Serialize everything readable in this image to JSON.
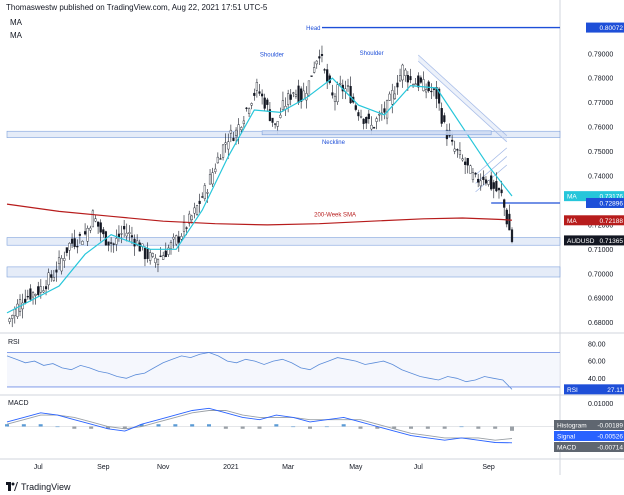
{
  "header": {
    "publisher_line": "Thomaswestw published on TradingView.com, Aug 22, 2021 17:51 UTC-5",
    "indicator_1": "MA",
    "indicator_2": "MA"
  },
  "footer": {
    "brand": "TradingView"
  },
  "colors": {
    "candle": "#131722",
    "ma_fast": "#26c6da",
    "sma_200w": "#b71c1c",
    "levels": "#1e4fd8",
    "zone_fill": "#cfdcf2",
    "rsi_line": "#5b8cd9",
    "macd_line": "#2962ff",
    "signal_line": "#9aa0a6",
    "hist_pos": "#5b9bd5",
    "hist_neg": "#9aa0a6"
  },
  "chart_data": [
    {
      "type": "candlestick",
      "pair": "AUDUSD",
      "timeframe": "daily",
      "x_ticks": [
        "Jul",
        "Sep",
        "Nov",
        "2021",
        "Mar",
        "May",
        "Jul",
        "Sep"
      ],
      "y_ticks": [
        "0.80000",
        "0.79000",
        "0.78000",
        "0.77000",
        "0.76000",
        "0.75000",
        "0.74000",
        "0.73000",
        "0.72000",
        "0.71000",
        "0.70000",
        "0.69000",
        "0.68000"
      ],
      "ylim": [
        0.677,
        0.803
      ],
      "close_path": [
        [
          0,
          0.68
        ],
        [
          6,
          0.69
        ],
        [
          12,
          0.693
        ],
        [
          18,
          0.7
        ],
        [
          24,
          0.712
        ],
        [
          30,
          0.716
        ],
        [
          33,
          0.724
        ],
        [
          37,
          0.715
        ],
        [
          41,
          0.712
        ],
        [
          45,
          0.718
        ],
        [
          49,
          0.714
        ],
        [
          53,
          0.708
        ],
        [
          56,
          0.706
        ],
        [
          60,
          0.708
        ],
        [
          66,
          0.715
        ],
        [
          72,
          0.725
        ],
        [
          77,
          0.736
        ],
        [
          82,
          0.75
        ],
        [
          85,
          0.756
        ],
        [
          88,
          0.758
        ],
        [
          93,
          0.77
        ],
        [
          96,
          0.776
        ],
        [
          99,
          0.77
        ],
        [
          103,
          0.76
        ],
        [
          106,
          0.768
        ],
        [
          110,
          0.775
        ],
        [
          113,
          0.772
        ],
        [
          116,
          0.778
        ],
        [
          118,
          0.786
        ],
        [
          120,
          0.791
        ],
        [
          122,
          0.782
        ],
        [
          125,
          0.772
        ],
        [
          128,
          0.776
        ],
        [
          131,
          0.775
        ],
        [
          134,
          0.768
        ],
        [
          137,
          0.764
        ],
        [
          140,
          0.76
        ],
        [
          143,
          0.764
        ],
        [
          146,
          0.768
        ],
        [
          149,
          0.776
        ],
        [
          152,
          0.784
        ],
        [
          155,
          0.779
        ],
        [
          158,
          0.778
        ],
        [
          161,
          0.776
        ],
        [
          165,
          0.773
        ],
        [
          168,
          0.76
        ],
        [
          171,
          0.752
        ],
        [
          174,
          0.748
        ],
        [
          177,
          0.743
        ],
        [
          180,
          0.738
        ],
        [
          183,
          0.74
        ],
        [
          186,
          0.736
        ],
        [
          190,
          0.732
        ],
        [
          192,
          0.722
        ],
        [
          194,
          0.7136
        ]
      ],
      "ma_fast_path": [
        [
          0,
          0.684
        ],
        [
          20,
          0.695
        ],
        [
          30,
          0.708
        ],
        [
          40,
          0.716
        ],
        [
          55,
          0.71
        ],
        [
          65,
          0.71
        ],
        [
          75,
          0.726
        ],
        [
          85,
          0.748
        ],
        [
          95,
          0.767
        ],
        [
          105,
          0.766
        ],
        [
          115,
          0.772
        ],
        [
          125,
          0.78
        ],
        [
          135,
          0.769
        ],
        [
          145,
          0.765
        ],
        [
          155,
          0.777
        ],
        [
          165,
          0.776
        ],
        [
          175,
          0.76
        ],
        [
          185,
          0.744
        ],
        [
          194,
          0.7318
        ]
      ],
      "sma200w_path": [
        [
          0,
          0.7285
        ],
        [
          20,
          0.7255
        ],
        [
          40,
          0.7235
        ],
        [
          60,
          0.7215
        ],
        [
          80,
          0.7205
        ],
        [
          100,
          0.72
        ],
        [
          120,
          0.7205
        ],
        [
          140,
          0.7215
        ],
        [
          160,
          0.7225
        ],
        [
          175,
          0.7228
        ],
        [
          190,
          0.7222
        ],
        [
          194,
          0.7219
        ]
      ],
      "horizontal_levels": [
        0.80072,
        0.72896
      ],
      "support_zones": [
        [
          0.7565,
          0.7575
        ],
        [
          0.7125,
          0.714
        ],
        [
          0.6995,
          0.702
        ]
      ],
      "annotations": [
        "Head",
        "Shoulder",
        "Shoulder",
        "Neckline",
        "200-Week SMA"
      ],
      "price_labels": [
        {
          "label": "",
          "value": "0.80072",
          "color": "#1e4fd8"
        },
        {
          "label": "MA",
          "value": "0.73176",
          "color": "#26c6da"
        },
        {
          "label": "",
          "value": "0.72896",
          "color": "#1e4fd8"
        },
        {
          "label": "MA",
          "value": "0.72188",
          "color": "#b71c1c"
        },
        {
          "label": "AUDUSD",
          "value": "0.71365",
          "color": "#131722"
        }
      ]
    },
    {
      "type": "line",
      "name": "RSI",
      "y_ticks": [
        "80.00",
        "60.00",
        "40.00"
      ],
      "ylim": [
        24,
        88
      ],
      "overbought": 70,
      "oversold": 30,
      "current": "27.11",
      "values": [
        66,
        62,
        58,
        60,
        55,
        57,
        52,
        50,
        55,
        52,
        48,
        46,
        42,
        40,
        44,
        46,
        52,
        58,
        62,
        66,
        64,
        68,
        70,
        66,
        60,
        58,
        62,
        60,
        56,
        60,
        62,
        58,
        52,
        50,
        56,
        60,
        64,
        62,
        60,
        56,
        58,
        60,
        56,
        50,
        46,
        42,
        40,
        38,
        42,
        40,
        36,
        38,
        42,
        40,
        38,
        27.11
      ]
    },
    {
      "type": "bar",
      "name": "MACD",
      "y_ticks": [
        "0.01000",
        "0.00000",
        "-0.01000"
      ],
      "ylim": [
        -0.0125,
        0.0125
      ],
      "histogram_current": "-0.00189",
      "signal_current": "-0.00526",
      "macd_current": "-0.00714",
      "macd": [
        0.002,
        0.004,
        0.006,
        0.005,
        0.003,
        0.001,
        -0.001,
        -0.002,
        0.001,
        0.003,
        0.005,
        0.007,
        0.008,
        0.006,
        0.004,
        0.003,
        0.005,
        0.004,
        0.002,
        0.003,
        0.004,
        0.002,
        0.0,
        -0.002,
        -0.004,
        -0.005,
        -0.006,
        -0.005,
        -0.006,
        -0.007,
        -0.00714
      ],
      "signal": [
        0.001,
        0.003,
        0.005,
        0.005,
        0.004,
        0.002,
        0.0,
        -0.001,
        0.0,
        0.002,
        0.004,
        0.006,
        0.007,
        0.007,
        0.005,
        0.004,
        0.004,
        0.004,
        0.003,
        0.003,
        0.003,
        0.003,
        0.001,
        -0.001,
        -0.003,
        -0.004,
        -0.005,
        -0.005,
        -0.005,
        -0.006,
        -0.00526
      ],
      "histogram": [
        0.001,
        0.001,
        0.001,
        0.0,
        -0.001,
        -0.001,
        -0.001,
        -0.001,
        0.001,
        0.001,
        0.001,
        0.001,
        0.001,
        -0.001,
        -0.001,
        -0.001,
        0.001,
        0.0,
        -0.001,
        0.0,
        0.001,
        -0.001,
        -0.001,
        -0.001,
        -0.001,
        -0.001,
        -0.001,
        0.0,
        -0.001,
        -0.001,
        -0.00189
      ]
    }
  ]
}
